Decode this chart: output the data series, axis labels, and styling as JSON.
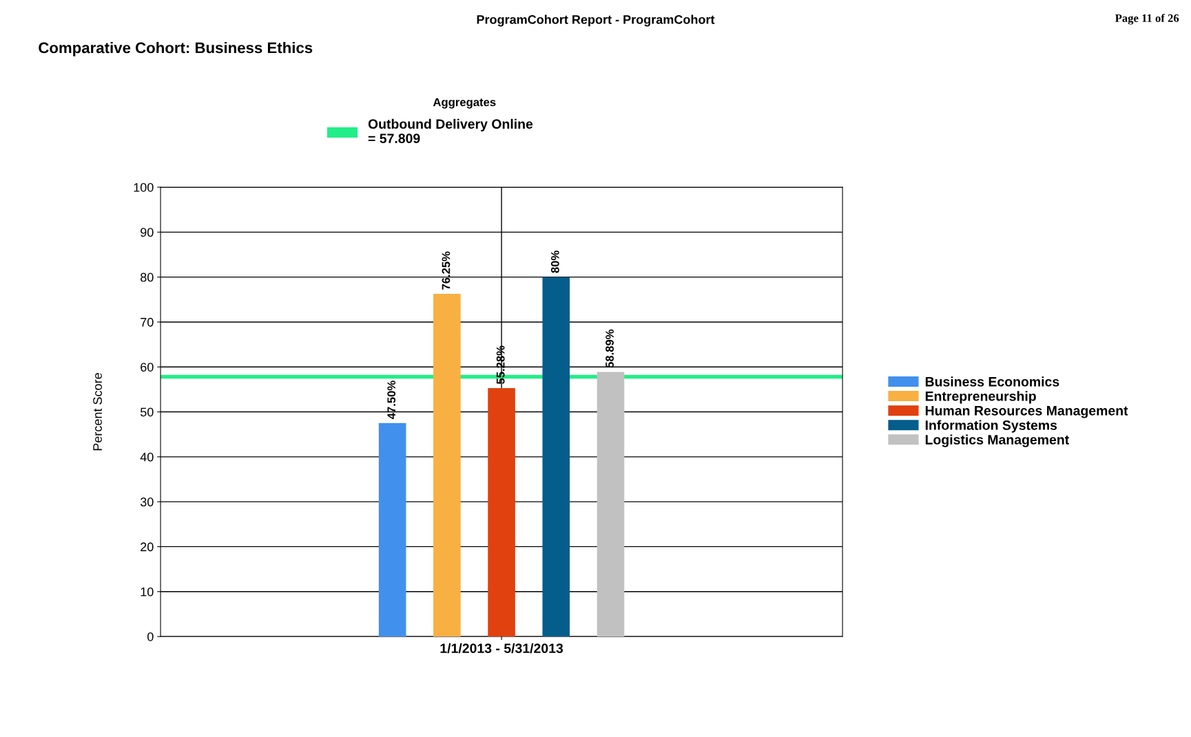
{
  "chart_data": {
    "type": "bar",
    "title": "Comparative Cohort: Business Ethics",
    "ylabel": "Percent Score",
    "annotations": [
      "ProgramCohort Report - ProgramCohort",
      "Page 11 of 26",
      "Aggregates"
    ],
    "categories": [
      "1/1/2013 - 5/31/2013"
    ],
    "series": [
      {
        "name": "Business Economics",
        "color": "#4190ee",
        "values": [
          47.5
        ],
        "value_labels": [
          "47.50%"
        ]
      },
      {
        "name": "Entrepreneurship",
        "color": "#f8b042",
        "values": [
          76.25
        ],
        "value_labels": [
          "76.25%"
        ]
      },
      {
        "name": "Human Resources Management",
        "color": "#e0410f",
        "values": [
          55.28
        ],
        "value_labels": [
          "55.28%"
        ]
      },
      {
        "name": "Information Systems",
        "color": "#045d8b",
        "values": [
          80
        ],
        "value_labels": [
          "80%"
        ]
      },
      {
        "name": "Logistics Management",
        "color": "#c1c1c1",
        "values": [
          58.89
        ],
        "value_labels": [
          "58.89%"
        ]
      }
    ],
    "ref_lines": [
      {
        "axis": "y",
        "value": 57.809,
        "label": "Outbound Delivery Online\n= 57.809",
        "color": "#22ee88"
      }
    ],
    "ylim": [
      0,
      100
    ],
    "yticks": [
      0,
      10,
      20,
      30,
      40,
      50,
      60,
      70,
      80,
      90,
      100
    ],
    "grid": true,
    "legend": "right"
  }
}
